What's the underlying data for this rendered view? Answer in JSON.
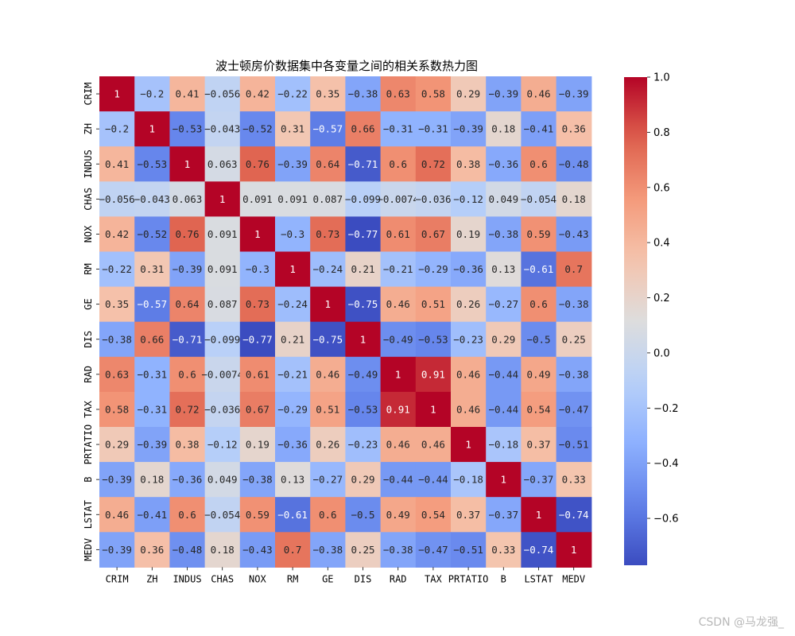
{
  "chart_data": {
    "type": "heatmap",
    "title": "波士顿房价数据集中各变量之间的相关系数热力图",
    "colormap": "coolwarm",
    "vmin": -0.77,
    "vmax": 1.0,
    "variables": [
      "CRIM",
      "ZH",
      "INDUS",
      "CHAS",
      "NOX",
      "RM",
      "GE",
      "DIS",
      "RAD",
      "TAX",
      "PRTATIO",
      "B",
      "LSTAT",
      "MEDV"
    ],
    "values": [
      [
        1,
        -0.2,
        0.41,
        -0.056,
        0.42,
        -0.22,
        0.35,
        -0.38,
        0.63,
        0.58,
        0.29,
        -0.39,
        0.46,
        -0.39
      ],
      [
        -0.2,
        1,
        -0.53,
        -0.043,
        -0.52,
        0.31,
        -0.57,
        0.66,
        -0.31,
        -0.31,
        -0.39,
        0.18,
        -0.41,
        0.36
      ],
      [
        0.41,
        -0.53,
        1,
        0.063,
        0.76,
        -0.39,
        0.64,
        -0.71,
        0.6,
        0.72,
        0.38,
        -0.36,
        0.6,
        -0.48
      ],
      [
        -0.056,
        -0.043,
        0.063,
        1,
        0.091,
        0.091,
        0.087,
        -0.099,
        -0.0074,
        -0.036,
        -0.12,
        0.049,
        -0.054,
        0.18
      ],
      [
        0.42,
        -0.52,
        0.76,
        0.091,
        1,
        -0.3,
        0.73,
        -0.77,
        0.61,
        0.67,
        0.19,
        -0.38,
        0.59,
        -0.43
      ],
      [
        -0.22,
        0.31,
        -0.39,
        0.091,
        -0.3,
        1,
        -0.24,
        0.21,
        -0.21,
        -0.29,
        -0.36,
        0.13,
        -0.61,
        0.7
      ],
      [
        0.35,
        -0.57,
        0.64,
        0.087,
        0.73,
        -0.24,
        1,
        -0.75,
        0.46,
        0.51,
        0.26,
        -0.27,
        0.6,
        -0.38
      ],
      [
        -0.38,
        0.66,
        -0.71,
        -0.099,
        -0.77,
        0.21,
        -0.75,
        1,
        -0.49,
        -0.53,
        -0.23,
        0.29,
        -0.5,
        0.25
      ],
      [
        0.63,
        -0.31,
        0.6,
        -0.0074,
        0.61,
        -0.21,
        0.46,
        -0.49,
        1,
        0.91,
        0.46,
        -0.44,
        0.49,
        -0.38
      ],
      [
        0.58,
        -0.31,
        0.72,
        -0.036,
        0.67,
        -0.29,
        0.51,
        -0.53,
        0.91,
        1,
        0.46,
        -0.44,
        0.54,
        -0.47
      ],
      [
        0.29,
        -0.39,
        0.38,
        -0.12,
        0.19,
        -0.36,
        0.26,
        -0.23,
        0.46,
        0.46,
        1,
        -0.18,
        0.37,
        -0.51
      ],
      [
        -0.39,
        0.18,
        -0.36,
        0.049,
        -0.38,
        0.13,
        -0.27,
        0.29,
        -0.44,
        -0.44,
        -0.18,
        1,
        -0.37,
        0.33
      ],
      [
        0.46,
        -0.41,
        0.6,
        -0.054,
        0.59,
        -0.61,
        0.6,
        -0.5,
        0.49,
        0.54,
        0.37,
        -0.37,
        1,
        -0.74
      ],
      [
        -0.39,
        0.36,
        -0.48,
        0.18,
        -0.43,
        0.7,
        -0.38,
        0.25,
        -0.38,
        -0.47,
        -0.51,
        0.33,
        -0.74,
        1
      ]
    ],
    "colorbar": {
      "ticks": [
        1.0,
        0.8,
        0.6,
        0.4,
        0.2,
        0.0,
        -0.2,
        -0.4,
        -0.6
      ],
      "tick_labels": [
        "1.0",
        "0.8",
        "0.6",
        "0.4",
        "0.2",
        "0.0",
        "−0.2",
        "−0.4",
        "−0.6"
      ]
    },
    "legend": "colorbar-right",
    "grid": false
  },
  "watermark": "CSDN @马龙强_"
}
